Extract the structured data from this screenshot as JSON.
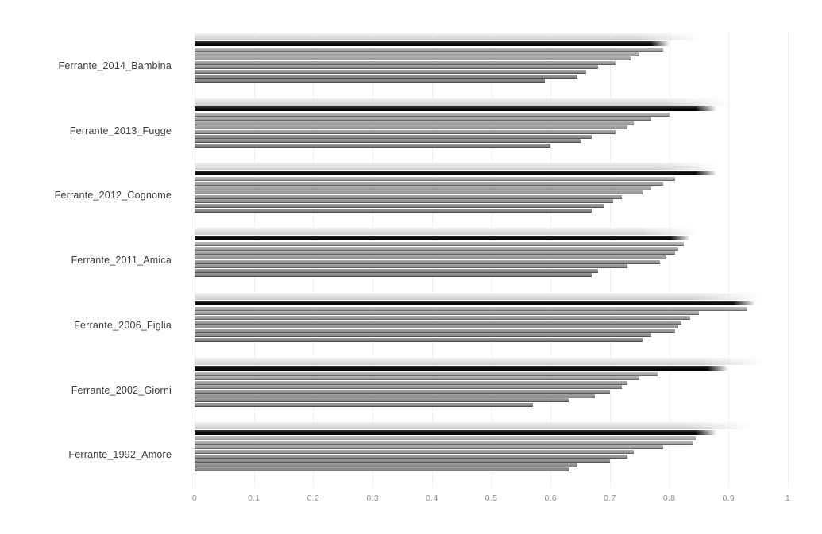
{
  "figure": {
    "background": "#ffffff",
    "description": "Horizontal grouped bar chart comparing seven Elena Ferrante novels; each group holds one pale reference bar, one black highlighted bar and a stack of grey candidate bars of decreasing length."
  },
  "colors": {
    "black_bar": "#111111",
    "light_bar": "#e2e2e2",
    "gray_bar_top": "#bebebe",
    "gray_bar_bottom": "#8c8c8c",
    "gridline": "#ebebeb",
    "axis_text": "#909090",
    "label_text": "#3c3c3c"
  },
  "chart_data": {
    "type": "bar",
    "orientation": "horizontal",
    "title": "",
    "xlabel": "",
    "ylabel": "",
    "xlim": [
      0,
      1
    ],
    "x_ticks": [
      "0",
      "0.1",
      "0.2",
      "0.3",
      "0.4",
      "0.5",
      "0.6",
      "0.7",
      "0.8",
      "0.9",
      "1"
    ],
    "grid": "vertical-faint",
    "legend": "none",
    "categories": [
      "Ferrante_2014_Bambina",
      "Ferrante_2013_Fugge",
      "Ferrante_2012_Cognome",
      "Ferrante_2011_Amica",
      "Ferrante_2006_Figlia",
      "Ferrante_2002_Giorni",
      "Ferrante_1992_Amore"
    ],
    "groups": [
      {
        "label": "Ferrante_2014_Bambina",
        "bars": [
          {
            "style": "light",
            "value": 0.85
          },
          {
            "style": "black",
            "value": 0.8
          },
          {
            "style": "gray",
            "value": 0.79
          },
          {
            "style": "gray",
            "value": 0.75
          },
          {
            "style": "gray",
            "value": 0.735
          },
          {
            "style": "gray",
            "value": 0.71
          },
          {
            "style": "gray",
            "value": 0.68
          },
          {
            "style": "gray",
            "value": 0.66
          },
          {
            "style": "gray",
            "value": 0.645
          },
          {
            "style": "gray",
            "value": 0.59
          }
        ]
      },
      {
        "label": "Ferrante_2013_Fugge",
        "bars": [
          {
            "style": "light",
            "value": 0.9
          },
          {
            "style": "black",
            "value": 0.88
          },
          {
            "style": "gray",
            "value": 0.8
          },
          {
            "style": "gray",
            "value": 0.77
          },
          {
            "style": "gray",
            "value": 0.74
          },
          {
            "style": "gray",
            "value": 0.73
          },
          {
            "style": "gray",
            "value": 0.71
          },
          {
            "style": "gray",
            "value": 0.67
          },
          {
            "style": "gray",
            "value": 0.65
          },
          {
            "style": "gray",
            "value": 0.6
          }
        ]
      },
      {
        "label": "Ferrante_2012_Cognome",
        "bars": [
          {
            "style": "light",
            "value": 0.885
          },
          {
            "style": "black",
            "value": 0.88
          },
          {
            "style": "gray",
            "value": 0.81
          },
          {
            "style": "gray",
            "value": 0.79
          },
          {
            "style": "gray",
            "value": 0.77
          },
          {
            "style": "gray",
            "value": 0.755
          },
          {
            "style": "gray",
            "value": 0.72
          },
          {
            "style": "gray",
            "value": 0.705
          },
          {
            "style": "gray",
            "value": 0.69
          },
          {
            "style": "gray",
            "value": 0.67
          }
        ]
      },
      {
        "label": "Ferrante_2011_Amica",
        "bars": [
          {
            "style": "light",
            "value": 0.85
          },
          {
            "style": "black",
            "value": 0.835
          },
          {
            "style": "gray",
            "value": 0.825
          },
          {
            "style": "gray",
            "value": 0.815
          },
          {
            "style": "gray",
            "value": 0.81
          },
          {
            "style": "gray",
            "value": 0.795
          },
          {
            "style": "gray",
            "value": 0.785
          },
          {
            "style": "gray",
            "value": 0.73
          },
          {
            "style": "gray",
            "value": 0.68
          },
          {
            "style": "gray",
            "value": 0.67
          }
        ]
      },
      {
        "label": "Ferrante_2006_Figlia",
        "bars": [
          {
            "style": "light",
            "value": 0.955
          },
          {
            "style": "black",
            "value": 0.945
          },
          {
            "style": "gray",
            "value": 0.93
          },
          {
            "style": "gray",
            "value": 0.85
          },
          {
            "style": "gray",
            "value": 0.835
          },
          {
            "style": "gray",
            "value": 0.82
          },
          {
            "style": "gray",
            "value": 0.815
          },
          {
            "style": "gray",
            "value": 0.81
          },
          {
            "style": "gray",
            "value": 0.77
          },
          {
            "style": "gray",
            "value": 0.755
          }
        ]
      },
      {
        "label": "Ferrante_2002_Giorni",
        "bars": [
          {
            "style": "light",
            "value": 0.96
          },
          {
            "style": "black",
            "value": 0.9
          },
          {
            "style": "gray",
            "value": 0.78
          },
          {
            "style": "gray",
            "value": 0.75
          },
          {
            "style": "gray",
            "value": 0.73
          },
          {
            "style": "gray",
            "value": 0.72
          },
          {
            "style": "gray",
            "value": 0.7
          },
          {
            "style": "gray",
            "value": 0.675
          },
          {
            "style": "gray",
            "value": 0.63
          },
          {
            "style": "gray",
            "value": 0.57
          }
        ]
      },
      {
        "label": "Ferrante_1992_Amore",
        "bars": [
          {
            "style": "light",
            "value": 0.94
          },
          {
            "style": "black",
            "value": 0.88
          },
          {
            "style": "gray",
            "value": 0.845
          },
          {
            "style": "gray",
            "value": 0.84
          },
          {
            "style": "gray",
            "value": 0.79
          },
          {
            "style": "gray",
            "value": 0.74
          },
          {
            "style": "gray",
            "value": 0.73
          },
          {
            "style": "gray",
            "value": 0.7
          },
          {
            "style": "gray",
            "value": 0.645
          },
          {
            "style": "gray",
            "value": 0.63
          }
        ]
      }
    ]
  }
}
